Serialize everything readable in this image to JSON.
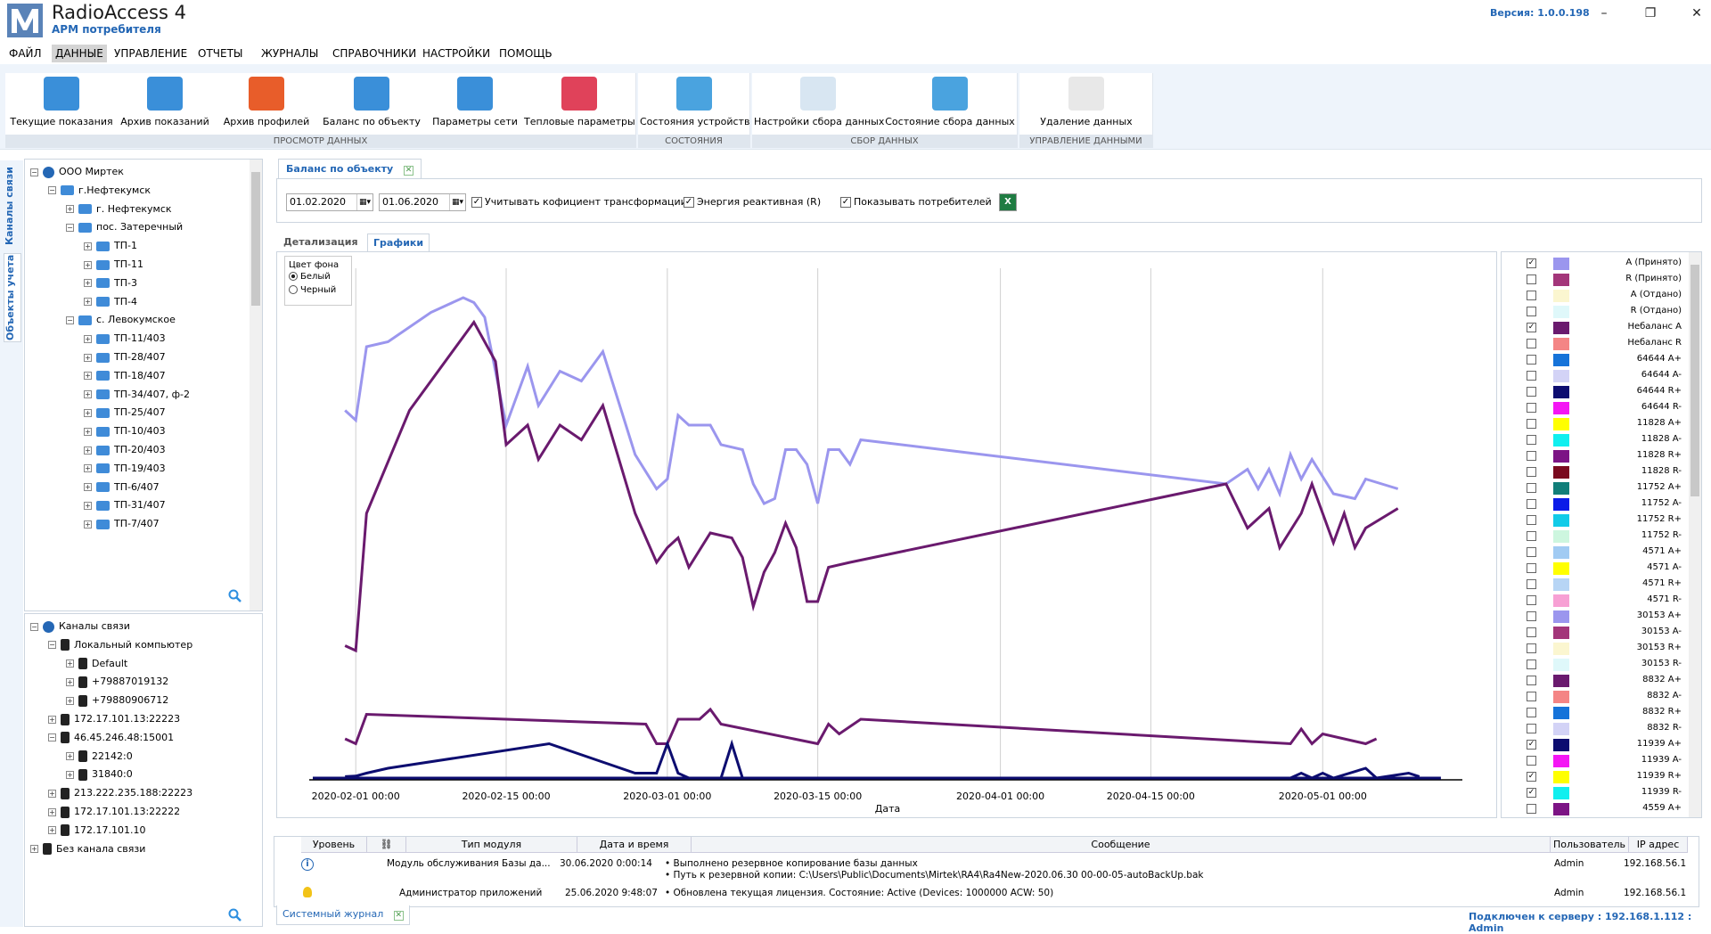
{
  "app": {
    "title": "RadioAccess 4",
    "subtitle": "АРМ потребителя",
    "version": "Версия:  1.0.0.198",
    "window_buttons": [
      "–",
      "❐",
      "✕"
    ]
  },
  "menu": [
    "ФАЙЛ",
    "ДАННЫЕ",
    "УПРАВЛЕНИЕ",
    "ОТЧЕТЫ",
    "ЖУРНАЛЫ",
    "СПРАВОЧНИКИ",
    "НАСТРОЙКИ",
    "ПОМОЩЬ"
  ],
  "ribbon": {
    "groups": [
      {
        "label": "ПРОСМОТР ДАННЫХ",
        "buttons": [
          "Текущие показания",
          "Архив показаний",
          "Архив профилей",
          "Баланс по объекту",
          "Параметры сети",
          "Тепловые параметры"
        ]
      },
      {
        "label": "СОСТОЯНИЯ",
        "buttons": [
          "Состояния устройств"
        ]
      },
      {
        "label": "СБОР ДАННЫХ",
        "buttons": [
          "Настройки сбора данных",
          "Состояние сбора данных"
        ]
      },
      {
        "label": "УПРАВЛЕНИЕ ДАННЫМИ",
        "buttons": [
          "Удаление данных"
        ]
      }
    ],
    "colors": [
      "#3a8fd9",
      "#3a8fd9",
      "#e85d2a",
      "#3a8fd9",
      "#3a8fd9",
      "#e0425a",
      "#4aa3df",
      "#4aa3df",
      "#4aa3df",
      "#d8d8d8"
    ]
  },
  "side_tabs": [
    "Каналы связи",
    "Объекты учета"
  ],
  "tree_objects": [
    {
      "label": "ООО Миртек",
      "level": 0,
      "icon": "gear",
      "pm": "−"
    },
    {
      "label": "г.Нефтекумск",
      "level": 1,
      "icon": "folder",
      "pm": "−"
    },
    {
      "label": "г. Нефтекумск",
      "level": 2,
      "icon": "folder",
      "pm": "+"
    },
    {
      "label": "пос. Затеречный",
      "level": 2,
      "icon": "folder",
      "pm": "−"
    },
    {
      "label": "ТП-1",
      "level": 3,
      "icon": "folder",
      "pm": "+"
    },
    {
      "label": "ТП-11",
      "level": 3,
      "icon": "folder",
      "pm": "+"
    },
    {
      "label": "ТП-3",
      "level": 3,
      "icon": "folder",
      "pm": "+"
    },
    {
      "label": "ТП-4",
      "level": 3,
      "icon": "folder",
      "pm": "+"
    },
    {
      "label": "с. Левокумское",
      "level": 2,
      "icon": "folder",
      "pm": "−"
    },
    {
      "label": "ТП-11/403",
      "level": 3,
      "icon": "folder",
      "pm": "+"
    },
    {
      "label": "ТП-28/407",
      "level": 3,
      "icon": "folder",
      "pm": "+"
    },
    {
      "label": "ТП-18/407",
      "level": 3,
      "icon": "folder",
      "pm": "+"
    },
    {
      "label": "ТП-34/407, ф-2",
      "level": 3,
      "icon": "folder",
      "pm": "+"
    },
    {
      "label": "ТП-25/407",
      "level": 3,
      "icon": "folder",
      "pm": "+"
    },
    {
      "label": "ТП-10/403",
      "level": 3,
      "icon": "folder",
      "pm": "+"
    },
    {
      "label": "ТП-20/403",
      "level": 3,
      "icon": "folder",
      "pm": "+"
    },
    {
      "label": "ТП-19/403",
      "level": 3,
      "icon": "folder",
      "pm": "+"
    },
    {
      "label": "ТП-6/407",
      "level": 3,
      "icon": "folder",
      "pm": "+"
    },
    {
      "label": "ТП-31/407",
      "level": 3,
      "icon": "folder",
      "pm": "+"
    },
    {
      "label": "ТП-7/407",
      "level": 3,
      "icon": "folder",
      "pm": "+"
    }
  ],
  "tree_channels": [
    {
      "label": "Каналы связи",
      "level": 0,
      "icon": "globe",
      "pm": "−"
    },
    {
      "label": "Локальный компьютер",
      "level": 1,
      "icon": "device",
      "pm": "−"
    },
    {
      "label": "Default",
      "level": 2,
      "icon": "device",
      "pm": "+"
    },
    {
      "label": "+79887019132",
      "level": 2,
      "icon": "device",
      "pm": "+"
    },
    {
      "label": "+79880906712",
      "level": 2,
      "icon": "device",
      "pm": "+"
    },
    {
      "label": "172.17.101.13:22223",
      "level": 1,
      "icon": "device",
      "pm": "+"
    },
    {
      "label": "46.45.246.48:15001",
      "level": 1,
      "icon": "device",
      "pm": "−"
    },
    {
      "label": "22142:0",
      "level": 2,
      "icon": "device",
      "pm": "+"
    },
    {
      "label": "31840:0",
      "level": 2,
      "icon": "device",
      "pm": "+"
    },
    {
      "label": "213.222.235.188:22223",
      "level": 1,
      "icon": "device",
      "pm": "+"
    },
    {
      "label": "172.17.101.13:22222",
      "level": 1,
      "icon": "device",
      "pm": "+"
    },
    {
      "label": "172.17.101.10",
      "level": 1,
      "icon": "device",
      "pm": "+"
    },
    {
      "label": "Без канала связи",
      "level": 0,
      "icon": "device",
      "pm": "+"
    }
  ],
  "document_tab": "Баланс по объекту",
  "filters": {
    "date_from": "01.02.2020",
    "date_to": "01.06.2020",
    "transform_coeff": "Учитывать кофициент трансформации",
    "reactive_energy": "Энергия реактивная (R)",
    "show_consumers": "Показывать потребителей"
  },
  "view_tabs": [
    "Детализация",
    "Графики"
  ],
  "background": {
    "title": "Цвет фона",
    "white": "Белый",
    "black": "Черный"
  },
  "chart_data": {
    "type": "line",
    "xlabel": "Дата",
    "x_ticks": [
      "2020-02-01 00:00",
      "2020-02-15 00:00",
      "2020-03-01 00:00",
      "2020-03-15 00:00",
      "2020-04-01 00:00",
      "2020-04-15 00:00",
      "2020-05-01 00:00"
    ],
    "x_range": [
      "2020-01-28",
      "2020-05-14"
    ],
    "y_range": [
      0,
      100
    ],
    "grid": "vertical",
    "series": [
      {
        "name": "A (Принято)",
        "color": "#9b96ee",
        "points": [
          [
            "2020-01-31",
            75
          ],
          [
            "2020-02-01",
            73
          ],
          [
            "2020-02-02",
            88
          ],
          [
            "2020-02-04",
            89
          ],
          [
            "2020-02-08",
            95
          ],
          [
            "2020-02-11",
            98
          ],
          [
            "2020-02-12",
            97
          ],
          [
            "2020-02-13",
            94
          ],
          [
            "2020-02-15",
            72
          ],
          [
            "2020-02-17",
            84
          ],
          [
            "2020-02-18",
            76
          ],
          [
            "2020-02-20",
            83
          ],
          [
            "2020-02-22",
            81
          ],
          [
            "2020-02-24",
            87
          ],
          [
            "2020-02-27",
            66
          ],
          [
            "2020-02-29",
            59
          ],
          [
            "2020-03-01",
            61
          ],
          [
            "2020-03-02",
            74
          ],
          [
            "2020-03-03",
            72
          ],
          [
            "2020-03-05",
            72
          ],
          [
            "2020-03-06",
            68
          ],
          [
            "2020-03-08",
            67
          ],
          [
            "2020-03-09",
            60
          ],
          [
            "2020-03-10",
            56
          ],
          [
            "2020-03-11",
            57
          ],
          [
            "2020-03-12",
            67
          ],
          [
            "2020-03-13",
            67
          ],
          [
            "2020-03-14",
            64
          ],
          [
            "2020-03-15",
            56
          ],
          [
            "2020-03-16",
            67
          ],
          [
            "2020-03-17",
            67
          ],
          [
            "2020-03-18",
            64
          ],
          [
            "2020-03-19",
            69
          ],
          [
            "2020-04-22",
            60
          ],
          [
            "2020-04-24",
            63
          ],
          [
            "2020-04-25",
            59
          ],
          [
            "2020-04-26",
            63
          ],
          [
            "2020-04-27",
            58
          ],
          [
            "2020-04-28",
            66
          ],
          [
            "2020-04-29",
            61
          ],
          [
            "2020-04-30",
            65
          ],
          [
            "2020-05-02",
            58
          ],
          [
            "2020-05-04",
            57
          ],
          [
            "2020-05-05",
            61
          ],
          [
            "2020-05-08",
            59
          ]
        ]
      },
      {
        "name": "Небаланс A",
        "color": "#6a1a6e",
        "points": [
          [
            "2020-01-31",
            27
          ],
          [
            "2020-02-01",
            26
          ],
          [
            "2020-02-02",
            54
          ],
          [
            "2020-02-06",
            75
          ],
          [
            "2020-02-12",
            93
          ],
          [
            "2020-02-14",
            85
          ],
          [
            "2020-02-15",
            68
          ],
          [
            "2020-02-17",
            72
          ],
          [
            "2020-02-18",
            65
          ],
          [
            "2020-02-20",
            72
          ],
          [
            "2020-02-22",
            69
          ],
          [
            "2020-02-24",
            76
          ],
          [
            "2020-02-27",
            54
          ],
          [
            "2020-02-29",
            44
          ],
          [
            "2020-03-01",
            47
          ],
          [
            "2020-03-02",
            49
          ],
          [
            "2020-03-03",
            43
          ],
          [
            "2020-03-05",
            50
          ],
          [
            "2020-03-07",
            49
          ],
          [
            "2020-03-08",
            45
          ],
          [
            "2020-03-09",
            35
          ],
          [
            "2020-03-10",
            42
          ],
          [
            "2020-03-11",
            46
          ],
          [
            "2020-03-12",
            52
          ],
          [
            "2020-03-13",
            47
          ],
          [
            "2020-03-14",
            36
          ],
          [
            "2020-03-15",
            36
          ],
          [
            "2020-03-16",
            43
          ],
          [
            "2020-03-18",
            44
          ],
          [
            "2020-04-22",
            60
          ],
          [
            "2020-04-24",
            51
          ],
          [
            "2020-04-26",
            55
          ],
          [
            "2020-04-27",
            47
          ],
          [
            "2020-04-29",
            54
          ],
          [
            "2020-04-30",
            60
          ],
          [
            "2020-05-02",
            48
          ],
          [
            "2020-05-03",
            54
          ],
          [
            "2020-05-04",
            47
          ],
          [
            "2020-05-05",
            51
          ],
          [
            "2020-05-08",
            55
          ]
        ]
      },
      {
        "name": "11939 A+",
        "color": "#6a1a6e",
        "points": [
          [
            "2020-01-31",
            8
          ],
          [
            "2020-02-01",
            7
          ],
          [
            "2020-02-02",
            13
          ],
          [
            "2020-02-15",
            12
          ],
          [
            "2020-02-28",
            11
          ],
          [
            "2020-02-29",
            7
          ],
          [
            "2020-03-01",
            7
          ],
          [
            "2020-03-02",
            12
          ],
          [
            "2020-03-04",
            12
          ],
          [
            "2020-03-05",
            14
          ],
          [
            "2020-03-06",
            11
          ],
          [
            "2020-03-15",
            7
          ],
          [
            "2020-03-16",
            11
          ],
          [
            "2020-03-17",
            9
          ],
          [
            "2020-03-19",
            12
          ],
          [
            "2020-04-28",
            7
          ],
          [
            "2020-04-29",
            10
          ],
          [
            "2020-04-30",
            7
          ],
          [
            "2020-05-01",
            9
          ],
          [
            "2020-05-05",
            7
          ],
          [
            "2020-05-06",
            8
          ]
        ]
      },
      {
        "name": "11939 R+",
        "color": "#0d0d70",
        "points": [
          [
            "2020-01-31",
            0.3
          ],
          [
            "2020-02-01",
            0.4
          ],
          [
            "2020-02-02",
            1
          ],
          [
            "2020-02-04",
            2
          ],
          [
            "2020-02-19",
            7
          ],
          [
            "2020-02-27",
            1
          ],
          [
            "2020-02-29",
            1
          ],
          [
            "2020-03-01",
            7
          ],
          [
            "2020-03-02",
            1
          ],
          [
            "2020-03-03",
            0
          ],
          [
            "2020-03-06",
            0
          ],
          [
            "2020-03-07",
            7
          ],
          [
            "2020-03-08",
            0
          ],
          [
            "2020-04-28",
            0
          ],
          [
            "2020-04-29",
            1
          ],
          [
            "2020-04-30",
            0
          ],
          [
            "2020-05-01",
            1
          ],
          [
            "2020-05-02",
            0
          ],
          [
            "2020-05-05",
            2
          ],
          [
            "2020-05-06",
            0
          ],
          [
            "2020-05-09",
            1
          ],
          [
            "2020-05-10",
            0.3
          ]
        ]
      },
      {
        "name": "11939 R-",
        "color": "#0d0d70",
        "points": [
          [
            "2020-01-28",
            0
          ],
          [
            "2020-05-12",
            0
          ]
        ]
      }
    ]
  },
  "legend": [
    {
      "label": "A (Принято)",
      "checked": true,
      "color": "#9b96ee"
    },
    {
      "label": "R (Принято)",
      "checked": false,
      "color": "#a3367a"
    },
    {
      "label": "A (Отдано)",
      "checked": false,
      "color": "#fbf6d0"
    },
    {
      "label": "R (Отдано)",
      "checked": false,
      "color": "#dff8fa"
    },
    {
      "label": "Небаланс A",
      "checked": true,
      "color": "#6a1a6e"
    },
    {
      "label": "Небаланс R",
      "checked": false,
      "color": "#f48585"
    },
    {
      "label": "64644 A+",
      "checked": false,
      "color": "#1673d9"
    },
    {
      "label": "64644 A-",
      "checked": false,
      "color": "#d3d3f6"
    },
    {
      "label": "64644 R+",
      "checked": false,
      "color": "#0d0d70"
    },
    {
      "label": "64644 R-",
      "checked": false,
      "color": "#f416f4"
    },
    {
      "label": "11828 A+",
      "checked": false,
      "color": "#ffff00"
    },
    {
      "label": "11828 A-",
      "checked": false,
      "color": "#10efef"
    },
    {
      "label": "11828 R+",
      "checked": false,
      "color": "#7c1485"
    },
    {
      "label": "11828 R-",
      "checked": false,
      "color": "#7a0a1f"
    },
    {
      "label": "11752 A+",
      "checked": false,
      "color": "#117e79"
    },
    {
      "label": "11752 A-",
      "checked": false,
      "color": "#0b1ce8"
    },
    {
      "label": "11752 R+",
      "checked": false,
      "color": "#12cbe8"
    },
    {
      "label": "11752 R-",
      "checked": false,
      "color": "#cdf6df"
    },
    {
      "label": "4571 A+",
      "checked": false,
      "color": "#a1cbf3"
    },
    {
      "label": "4571 A-",
      "checked": false,
      "color": "#ffff00"
    },
    {
      "label": "4571 R+",
      "checked": false,
      "color": "#b7d5f5"
    },
    {
      "label": "4571 R-",
      "checked": false,
      "color": "#f7a0d4"
    },
    {
      "label": "30153 A+",
      "checked": false,
      "color": "#9b96ee"
    },
    {
      "label": "30153 A-",
      "checked": false,
      "color": "#a3367a"
    },
    {
      "label": "30153 R+",
      "checked": false,
      "color": "#fbf6d0"
    },
    {
      "label": "30153 R-",
      "checked": false,
      "color": "#dff8fa"
    },
    {
      "label": "8832 A+",
      "checked": false,
      "color": "#6a1a6e"
    },
    {
      "label": "8832 A-",
      "checked": false,
      "color": "#f48585"
    },
    {
      "label": "8832 R+",
      "checked": false,
      "color": "#1673d9"
    },
    {
      "label": "8832 R-",
      "checked": false,
      "color": "#d3d3f6"
    },
    {
      "label": "11939 A+",
      "checked": true,
      "color": "#0d0d70"
    },
    {
      "label": "11939 A-",
      "checked": false,
      "color": "#f416f4"
    },
    {
      "label": "11939 R+",
      "checked": true,
      "color": "#ffff00"
    },
    {
      "label": "11939 R-",
      "checked": true,
      "color": "#10efef"
    },
    {
      "label": "4559 A+",
      "checked": false,
      "color": "#7c1485"
    }
  ],
  "log": {
    "headers": [
      "Уровень",
      "Тип модуля",
      "Дата и время",
      "Сообщение",
      "Пользователь",
      "IP адрес"
    ],
    "rows": [
      {
        "module": "Модуль обслуживания Базы да...",
        "datetime": "30.06.2020 0:00:14",
        "msg1": "• Выполнено резервное копирование базы данных",
        "msg2": "• Путь к резервной копии: C:\\Users\\Public\\Documents\\Mirtek\\RA4\\Ra4New-2020.06.30 00-00-05-autoBackUp.bak",
        "user": "Admin",
        "ip": "192.168.56.1"
      },
      {
        "module": "Администратор приложений",
        "datetime": "25.06.2020 9:48:07",
        "msg1": "• Обновлена текущая лицензия. Состояние:  Active (Devices: 1000000 ACW: 50)",
        "msg2": "",
        "user": "Admin",
        "ip": "192.168.56.1"
      }
    ],
    "tab": "Системный журнал"
  },
  "status": "Подключен к серверу : 192.168.1.112 : Admin"
}
